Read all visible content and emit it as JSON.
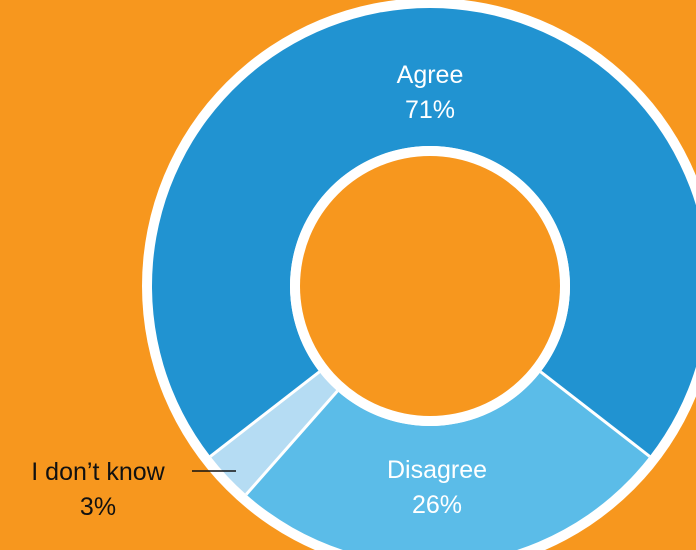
{
  "colors": {
    "background": "#F7971E",
    "agree": "#2193D1",
    "disagree": "#5BBCE8",
    "dont_know": "#B5DCF3",
    "separator": "#FFFFFF",
    "label_on_slice": "#FFFFFF",
    "label_outside": "#111111"
  },
  "chart_data": {
    "type": "pie",
    "variant": "donut",
    "slices": [
      {
        "label": "Agree",
        "value": 71,
        "value_label": "71%"
      },
      {
        "label": "Disagree",
        "value": 26,
        "value_label": "26%"
      },
      {
        "label": "I don’t know",
        "value": 3,
        "value_label": "3%"
      }
    ],
    "start": "Agree slice centered at top, slices proceed clockwise",
    "legend": "none"
  }
}
